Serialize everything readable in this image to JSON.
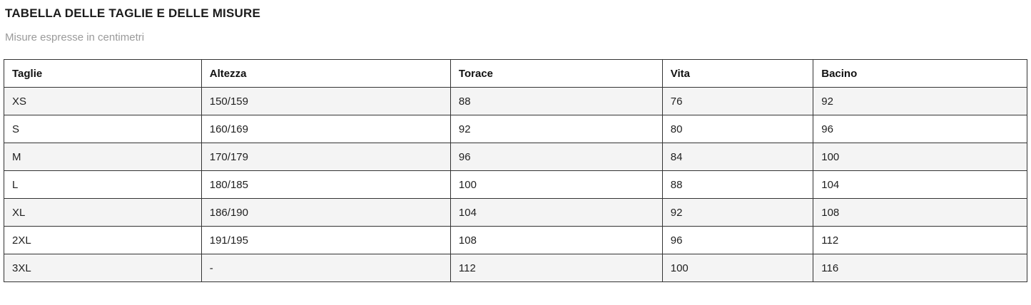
{
  "page": {
    "title": "TABELLA DELLE TAGLIE E DELLE MISURE",
    "subtitle": "Misure espresse in centimetri"
  },
  "table": {
    "columns": [
      "Taglie",
      "Altezza",
      "Torace",
      "Vita",
      "Bacino"
    ],
    "rows": [
      [
        "XS",
        "150/159",
        "88",
        "76",
        "92"
      ],
      [
        "S",
        "160/169",
        "92",
        "80",
        "96"
      ],
      [
        "M",
        "170/179",
        "96",
        "84",
        "100"
      ],
      [
        "L",
        "180/185",
        "100",
        "88",
        "104"
      ],
      [
        "XL",
        "186/190",
        "104",
        "92",
        "108"
      ],
      [
        "2XL",
        "191/195",
        "108",
        "96",
        "112"
      ],
      [
        "3XL",
        "-",
        "112",
        "100",
        "116"
      ]
    ]
  },
  "colors": {
    "title_text": "#1b1b1b",
    "subtitle_text": "#9a9a9a",
    "cell_text": "#1f1f1f",
    "table_border": "#333333",
    "row_alt_bg": "#f4f4f4",
    "row_bg": "#ffffff",
    "page_bg": "#ffffff"
  }
}
